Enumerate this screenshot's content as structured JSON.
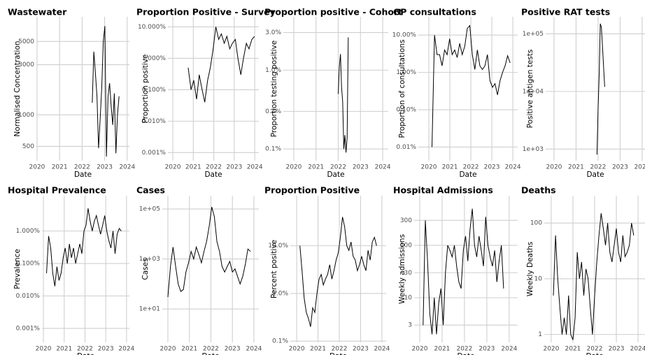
{
  "chart_data": [
    {
      "type": "line",
      "title": "Wastewater",
      "xlabel": "Date",
      "ylabel": "Normalised Concentration",
      "log_y": true,
      "grid": true,
      "color": "#000000",
      "xlim": [
        2019.97,
        2024.1
      ],
      "xticks": [
        2020,
        2021,
        2022,
        2023,
        2024
      ],
      "ylim": [
        365,
        8590
      ],
      "yticks": [
        500,
        1000,
        3000,
        5000
      ],
      "x": [
        2022.45,
        2022.52,
        2022.59,
        2022.66,
        2022.73,
        2022.8,
        2022.87,
        2022.94,
        2023.01,
        2023.08,
        2023.15,
        2023.22,
        2023.29,
        2023.36,
        2023.43,
        2023.5,
        2023.57,
        2023.64
      ],
      "values": [
        1300,
        4000,
        2500,
        1500,
        480,
        900,
        1800,
        5000,
        7000,
        400,
        1500,
        2000,
        1200,
        800,
        1600,
        430,
        1000,
        1500
      ]
    },
    {
      "type": "line",
      "title": "Proportion Positive - Survey",
      "xlabel": "Date",
      "ylabel": "Proportion positive",
      "log_y": true,
      "grid": true,
      "color": "#000000",
      "xlim": [
        2019.76,
        2024.2
      ],
      "xticks": [
        2020,
        2021,
        2022,
        2023,
        2024
      ],
      "ylim": [
        0.00055,
        21
      ],
      "yticks": [
        {
          "value": 0.001,
          "label": "0.001%"
        },
        {
          "value": 0.01,
          "label": "0.010%"
        },
        {
          "value": 0.1,
          "label": "0.100%"
        },
        {
          "value": 1,
          "label": "1.000%"
        },
        {
          "value": 10,
          "label": "10.000%"
        }
      ],
      "x": [
        2020.75,
        2020.89,
        2021.02,
        2021.16,
        2021.29,
        2021.43,
        2021.56,
        2021.7,
        2021.83,
        2021.97,
        2022.1,
        2022.24,
        2022.37,
        2022.51,
        2022.64,
        2022.78,
        2022.91,
        2023.05,
        2023.18,
        2023.32,
        2023.45,
        2023.59,
        2023.72,
        2023.86,
        2023.99
      ],
      "values": [
        0.5,
        0.1,
        0.2,
        0.05,
        0.3,
        0.1,
        0.04,
        0.2,
        0.5,
        2,
        10,
        4,
        6,
        3,
        5,
        2,
        3,
        4,
        1,
        0.3,
        1,
        3,
        2,
        4,
        5
      ]
    },
    {
      "type": "line",
      "title": "Proportion positive - Cohort",
      "xlabel": "Date",
      "ylabel": "Proportion testing positive",
      "log_y": true,
      "grid": true,
      "color": "#000000",
      "xlim": [
        2019.53,
        2024.25
      ],
      "xticks": [
        2020,
        2021,
        2022,
        2023,
        2024
      ],
      "ylim": [
        0.071,
        4.75
      ],
      "yticks": [
        {
          "value": 0.1,
          "label": "0.1%"
        },
        {
          "value": 0.3,
          "label": "0.3%"
        },
        {
          "value": 1,
          "label": "1.0%"
        },
        {
          "value": 3,
          "label": "3.0%"
        }
      ],
      "x": [
        2022.0,
        2022.05,
        2022.1,
        2022.15,
        2022.2,
        2022.25,
        2022.3,
        2022.35,
        2022.4,
        2022.45
      ],
      "values": [
        0.5,
        1.1,
        1.6,
        0.6,
        0.4,
        0.1,
        0.15,
        0.09,
        0.14,
        2.6
      ]
    },
    {
      "type": "line",
      "title": "GP consultations",
      "xlabel": "Date",
      "ylabel": "Proportion of consultations",
      "log_y": true,
      "grid": true,
      "color": "#000000",
      "xlim": [
        2019.5,
        2024.23
      ],
      "xticks": [
        2020,
        2021,
        2022,
        2023,
        2024
      ],
      "ylim": [
        0.0043,
        31
      ],
      "yticks": [
        {
          "value": 0.01,
          "label": "0.01%"
        },
        {
          "value": 0.1,
          "label": "0.10%"
        },
        {
          "value": 1,
          "label": "1.00%"
        },
        {
          "value": 10,
          "label": "10.00%"
        }
      ],
      "x": [
        2020.15,
        2020.27,
        2020.39,
        2020.51,
        2020.63,
        2020.75,
        2020.87,
        2020.99,
        2021.11,
        2021.23,
        2021.35,
        2021.47,
        2021.59,
        2021.71,
        2021.83,
        2021.95,
        2022.07,
        2022.19,
        2022.31,
        2022.43,
        2022.55,
        2022.67,
        2022.79,
        2022.91,
        2023.03,
        2023.15,
        2023.27,
        2023.39,
        2023.51,
        2023.63,
        2023.75,
        2023.87
      ],
      "values": [
        0.01,
        10,
        3,
        3,
        1.5,
        4,
        3,
        8,
        3,
        4,
        2.5,
        6,
        3,
        5,
        15,
        18,
        3,
        1.2,
        4,
        1.5,
        1.2,
        1.5,
        3,
        0.6,
        0.4,
        0.5,
        0.25,
        0.6,
        1,
        1.5,
        2.8,
        1.8
      ]
    },
    {
      "type": "line",
      "title": "Positive RAT tests",
      "xlabel": "Date",
      "ylabel": "Positive antigen tests",
      "log_y": true,
      "grid": true,
      "color": "#000000",
      "xlim": [
        2019.62,
        2024.13
      ],
      "xticks": [
        2020,
        2021,
        2022,
        2023,
        2024
      ],
      "ylim": [
        627,
        198000
      ],
      "yticks": [
        {
          "value": 1000,
          "label": "1e+03"
        },
        {
          "value": 10000,
          "label": "1e+04"
        },
        {
          "value": 100000,
          "label": "1e+05"
        }
      ],
      "x": [
        2021.95,
        2022.0,
        2022.05,
        2022.1,
        2022.15,
        2022.2,
        2022.3
      ],
      "values": [
        800,
        5000,
        20000,
        150000,
        130000,
        60000,
        12000
      ]
    },
    {
      "type": "line",
      "title": "Hospital Prevalence",
      "xlabel": "Date",
      "ylabel": "Prevalence",
      "log_y": true,
      "grid": true,
      "color": "#000000",
      "xlim": [
        2019.93,
        2024.14
      ],
      "xticks": [
        2020,
        2021,
        2022,
        2023,
        2024
      ],
      "ylim": [
        0.00037,
        12.3
      ],
      "yticks": [
        {
          "value": 0.001,
          "label": "0.001%"
        },
        {
          "value": 0.01,
          "label": "0.010%"
        },
        {
          "value": 0.1,
          "label": "0.100%"
        },
        {
          "value": 1,
          "label": "1.000%"
        }
      ],
      "x": [
        2020.15,
        2020.25,
        2020.35,
        2020.45,
        2020.55,
        2020.65,
        2020.75,
        2020.85,
        2020.95,
        2021.05,
        2021.15,
        2021.25,
        2021.35,
        2021.45,
        2021.55,
        2021.65,
        2021.75,
        2021.85,
        2021.95,
        2022.05,
        2022.15,
        2022.25,
        2022.35,
        2022.45,
        2022.55,
        2022.65,
        2022.75,
        2022.85,
        2022.95,
        2023.05,
        2023.15,
        2023.25,
        2023.35,
        2023.45,
        2023.55,
        2023.65,
        2023.75
      ],
      "values": [
        0.05,
        0.7,
        0.3,
        0.05,
        0.02,
        0.08,
        0.03,
        0.05,
        0.15,
        0.3,
        0.1,
        0.4,
        0.15,
        0.3,
        0.1,
        0.2,
        0.4,
        0.2,
        1,
        1.5,
        5,
        2,
        1,
        2,
        3,
        1.5,
        0.8,
        1.5,
        3,
        1,
        0.5,
        0.3,
        1,
        0.2,
        0.8,
        1.2,
        1
      ]
    },
    {
      "type": "line",
      "title": "Cases",
      "xlabel": "Date",
      "ylabel": "Cases",
      "log_y": true,
      "grid": true,
      "color": "#000000",
      "xlim": [
        2019.74,
        2024.23
      ],
      "xticks": [
        2020,
        2021,
        2022,
        2023,
        2024
      ],
      "ylim": [
        0.46,
        340000
      ],
      "yticks": [
        {
          "value": 10,
          "label": "1e+01"
        },
        {
          "value": 1000,
          "label": "1e+03"
        },
        {
          "value": 100000,
          "label": "1e+05"
        }
      ],
      "x": [
        2020.0,
        2020.12,
        2020.24,
        2020.36,
        2020.48,
        2020.6,
        2020.72,
        2020.84,
        2020.96,
        2021.08,
        2021.2,
        2021.32,
        2021.44,
        2021.56,
        2021.68,
        2021.8,
        2021.92,
        2022.04,
        2022.16,
        2022.28,
        2022.4,
        2022.52,
        2022.64,
        2022.76,
        2022.88,
        2023.0,
        2023.12,
        2023.24,
        2023.36,
        2023.48,
        2023.6,
        2023.72,
        2023.84
      ],
      "values": [
        30,
        500,
        3000,
        500,
        100,
        50,
        60,
        300,
        700,
        2000,
        1000,
        3000,
        1500,
        700,
        2000,
        5000,
        20000,
        120000,
        50000,
        5000,
        2000,
        500,
        300,
        500,
        800,
        300,
        400,
        200,
        100,
        200,
        600,
        2500,
        2000
      ]
    },
    {
      "type": "line",
      "title": "Proportion Positive",
      "xlabel": "Date",
      "ylabel": "Percent positive",
      "log_y": true,
      "grid": true,
      "color": "#000000",
      "xlim": [
        2019.7,
        2024.2
      ],
      "xticks": [
        2020,
        2021,
        2022,
        2023,
        2024
      ],
      "ylim": [
        0.094,
        112
      ],
      "yticks": [
        {
          "value": 0.1,
          "label": "0.1%"
        },
        {
          "value": 1,
          "label": "1.0%"
        },
        {
          "value": 10,
          "label": "10.0%"
        }
      ],
      "x": [
        2020.15,
        2020.25,
        2020.35,
        2020.45,
        2020.55,
        2020.65,
        2020.75,
        2020.85,
        2020.95,
        2021.05,
        2021.15,
        2021.25,
        2021.35,
        2021.45,
        2021.55,
        2021.65,
        2021.75,
        2021.85,
        2021.95,
        2022.05,
        2022.15,
        2022.25,
        2022.35,
        2022.45,
        2022.55,
        2022.65,
        2022.75,
        2022.85,
        2022.95,
        2023.05,
        2023.15,
        2023.25,
        2023.35,
        2023.45,
        2023.55,
        2023.65,
        2023.75
      ],
      "values": [
        10,
        3,
        0.8,
        0.4,
        0.3,
        0.2,
        0.5,
        0.4,
        1,
        2,
        2.5,
        1.5,
        2,
        2.5,
        4,
        2,
        3,
        5,
        7,
        15,
        40,
        25,
        10,
        8,
        12,
        6,
        5,
        3,
        4,
        6,
        4,
        3,
        8,
        5,
        12,
        15,
        10
      ]
    },
    {
      "type": "line",
      "title": "Hospital Admissions",
      "xlabel": "Date",
      "ylabel": "Weekly admissions",
      "log_y": true,
      "grid": true,
      "color": "#000000",
      "xlim": [
        2019.75,
        2024.38
      ],
      "xticks": [
        2020,
        2021,
        2022,
        2023,
        2024
      ],
      "ylim": [
        1.4,
        888
      ],
      "yticks": [
        3,
        10,
        30,
        100,
        300
      ],
      "x": [
        2020.15,
        2020.25,
        2020.35,
        2020.45,
        2020.55,
        2020.65,
        2020.75,
        2020.85,
        2020.95,
        2021.05,
        2021.15,
        2021.25,
        2021.35,
        2021.45,
        2021.55,
        2021.65,
        2021.75,
        2021.85,
        2021.95,
        2022.05,
        2022.15,
        2022.25,
        2022.35,
        2022.45,
        2022.55,
        2022.65,
        2022.75,
        2022.85,
        2022.95,
        2023.05,
        2023.15,
        2023.25,
        2023.35,
        2023.45,
        2023.55,
        2023.65,
        2023.75
      ],
      "values": [
        3,
        300,
        50,
        5,
        2,
        10,
        2,
        8,
        15,
        3,
        30,
        100,
        80,
        60,
        100,
        40,
        20,
        15,
        80,
        150,
        50,
        200,
        500,
        100,
        60,
        150,
        80,
        40,
        350,
        100,
        60,
        40,
        80,
        20,
        50,
        100,
        15
      ]
    },
    {
      "type": "line",
      "title": "Deaths",
      "xlabel": "Date",
      "ylabel": "Weekly Deaths",
      "log_y": true,
      "grid": true,
      "color": "#000000",
      "xlim": [
        2019.68,
        2024.32
      ],
      "xticks": [
        2020,
        2021,
        2022,
        2023,
        2024
      ],
      "ylim": [
        0.72,
        310
      ],
      "yticks": [
        1,
        10,
        100
      ],
      "x": [
        2020.1,
        2020.2,
        2020.3,
        2020.4,
        2020.5,
        2020.6,
        2020.7,
        2020.8,
        2020.9,
        2021.0,
        2021.1,
        2021.2,
        2021.3,
        2021.4,
        2021.5,
        2021.6,
        2021.7,
        2021.8,
        2021.9,
        2022.0,
        2022.1,
        2022.2,
        2022.3,
        2022.4,
        2022.5,
        2022.6,
        2022.7,
        2022.8,
        2022.9,
        2023.0,
        2023.1,
        2023.2,
        2023.3,
        2023.4,
        2023.5,
        2023.6,
        2023.7,
        2023.8
      ],
      "values": [
        5,
        60,
        10,
        3,
        1,
        2,
        1,
        5,
        1,
        0.8,
        2,
        30,
        10,
        20,
        5,
        15,
        10,
        3,
        1,
        5,
        20,
        60,
        150,
        80,
        40,
        100,
        30,
        20,
        40,
        80,
        30,
        20,
        60,
        25,
        30,
        40,
        100,
        60
      ]
    }
  ]
}
